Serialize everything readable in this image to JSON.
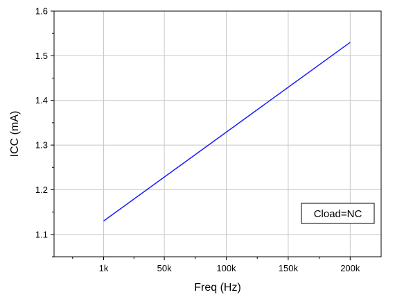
{
  "chart_data": {
    "type": "line",
    "title": "",
    "xlabel": "Freq (Hz)",
    "ylabel": "ICC (mA)",
    "x": [
      1000,
      200000
    ],
    "series": [
      {
        "values": [
          1.13,
          1.53
        ],
        "color": "#1a1aff"
      }
    ],
    "xlim": [
      -39000,
      225000
    ],
    "ylim": [
      1.05,
      1.6
    ],
    "x_ticks": [
      {
        "value": 1000,
        "label": "1k"
      },
      {
        "value": 50000,
        "label": "50k"
      },
      {
        "value": 100000,
        "label": "100k"
      },
      {
        "value": 150000,
        "label": "150k"
      },
      {
        "value": 200000,
        "label": "200k"
      }
    ],
    "y_ticks": [
      {
        "value": 1.1,
        "label": "1.1"
      },
      {
        "value": 1.2,
        "label": "1.2"
      },
      {
        "value": 1.3,
        "label": "1.3"
      },
      {
        "value": 1.4,
        "label": "1.4"
      },
      {
        "value": 1.5,
        "label": "1.5"
      },
      {
        "value": 1.6,
        "label": "1.6"
      }
    ],
    "grid": true,
    "annotation": "Cload=NC",
    "annotation_position": "bottom-right"
  }
}
